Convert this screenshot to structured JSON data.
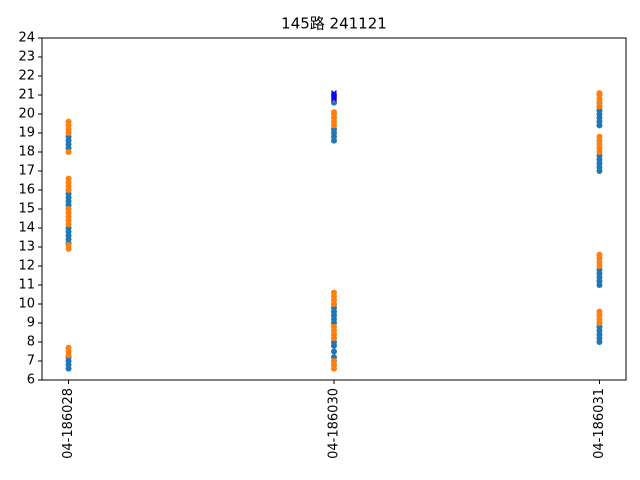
{
  "chart_data": {
    "type": "scatter",
    "title": "145路  241121",
    "categories": [
      "04-186028",
      "04-186030",
      "04-186031"
    ],
    "ylim": [
      6,
      24
    ],
    "yticks": [
      6,
      7,
      8,
      9,
      10,
      11,
      12,
      13,
      14,
      15,
      16,
      17,
      18,
      19,
      20,
      21,
      22,
      23,
      24
    ],
    "series": [
      {
        "color": "#1f77b4",
        "marker": "o",
        "x": [
          "04-186028",
          "04-186028",
          "04-186028",
          "04-186028",
          "04-186028",
          "04-186028",
          "04-186028",
          "04-186028",
          "04-186028",
          "04-186028",
          "04-186028",
          "04-186028",
          "04-186028",
          "04-186028",
          "04-186028",
          "04-186028",
          "04-186028",
          "04-186028",
          "04-186028",
          "04-186030",
          "04-186030",
          "04-186030",
          "04-186030",
          "04-186030",
          "04-186030",
          "04-186030",
          "04-186030",
          "04-186030",
          "04-186030",
          "04-186030",
          "04-186030",
          "04-186030",
          "04-186030",
          "04-186030",
          "04-186030",
          "04-186030",
          "04-186031",
          "04-186031",
          "04-186031",
          "04-186031",
          "04-186031",
          "04-186031",
          "04-186031",
          "04-186031",
          "04-186031",
          "04-186031",
          "04-186031",
          "04-186031",
          "04-186031",
          "04-186031",
          "04-186031",
          "04-186031",
          "04-186031",
          "04-186031",
          "04-186031",
          "04-186031",
          "04-186031",
          "04-186031",
          "04-186031"
        ],
        "values": [
          6.6,
          6.8,
          7.0,
          7.2,
          13.2,
          13.4,
          13.6,
          13.8,
          14.0,
          15.0,
          15.2,
          15.4,
          15.6,
          15.8,
          16.0,
          18.2,
          18.4,
          18.6,
          18.8,
          6.8,
          7.0,
          7.2,
          7.5,
          7.8,
          8.0,
          9.0,
          9.2,
          9.4,
          9.6,
          9.8,
          10.0,
          18.6,
          18.8,
          19.0,
          19.2,
          20.6,
          8.0,
          8.2,
          8.4,
          8.6,
          8.8,
          9.0,
          11.0,
          11.2,
          11.4,
          11.6,
          11.8,
          17.0,
          17.2,
          17.4,
          17.6,
          17.8,
          19.4,
          19.6,
          19.8,
          20.0,
          20.2,
          20.4,
          20.6
        ]
      },
      {
        "color": "#ff7f0e",
        "marker": "o",
        "x": [
          "04-186028",
          "04-186028",
          "04-186028",
          "04-186028",
          "04-186028",
          "04-186028",
          "04-186028",
          "04-186028",
          "04-186028",
          "04-186028",
          "04-186028",
          "04-186028",
          "04-186028",
          "04-186028",
          "04-186028",
          "04-186028",
          "04-186028",
          "04-186028",
          "04-186028",
          "04-186030",
          "04-186030",
          "04-186030",
          "04-186030",
          "04-186030",
          "04-186030",
          "04-186030",
          "04-186030",
          "04-186030",
          "04-186030",
          "04-186030",
          "04-186030",
          "04-186030",
          "04-186030",
          "04-186030",
          "04-186030",
          "04-186030",
          "04-186030",
          "04-186031",
          "04-186031",
          "04-186031",
          "04-186031",
          "04-186031",
          "04-186031",
          "04-186031",
          "04-186031",
          "04-186031",
          "04-186031",
          "04-186031",
          "04-186031",
          "04-186031",
          "04-186031",
          "04-186031",
          "04-186031",
          "04-186031",
          "04-186031"
        ],
        "values": [
          7.3,
          7.5,
          7.7,
          12.9,
          13.1,
          14.2,
          14.4,
          14.6,
          14.8,
          15.0,
          16.0,
          16.2,
          16.4,
          16.6,
          18.0,
          19.0,
          19.2,
          19.4,
          19.6,
          6.6,
          6.8,
          7.0,
          8.2,
          8.4,
          8.6,
          8.8,
          10.0,
          10.2,
          10.4,
          10.6,
          19.4,
          19.6,
          19.8,
          20.0,
          20.1,
          20.8,
          21.0,
          9.0,
          9.2,
          9.4,
          9.6,
          12.0,
          12.2,
          12.4,
          12.6,
          18.0,
          18.2,
          18.4,
          18.6,
          18.8,
          20.4,
          20.6,
          20.8,
          21.0,
          21.1
        ]
      },
      {
        "color": "#0000ff",
        "marker": "x",
        "x": [
          "04-186030",
          "04-186030",
          "04-186030",
          "04-186030"
        ],
        "values": [
          20.8,
          20.9,
          21.0,
          21.1
        ]
      }
    ]
  }
}
